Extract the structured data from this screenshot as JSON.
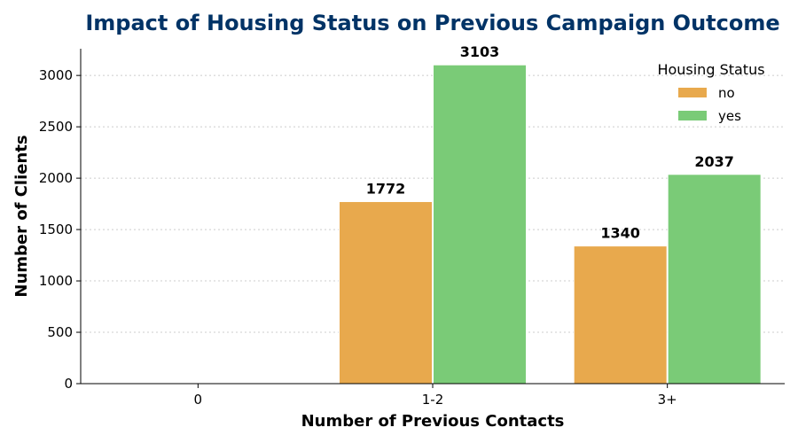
{
  "chart_data": {
    "type": "bar",
    "title": "Impact of Housing Status on Previous Campaign Outcome",
    "xlabel": "Number of Previous Contacts",
    "ylabel": "Number of Clients",
    "categories": [
      "0",
      "1-2",
      "3+"
    ],
    "series": [
      {
        "name": "no",
        "values": [
          0,
          1772,
          1340
        ],
        "color": "#E8A94D"
      },
      {
        "name": "yes",
        "values": [
          0,
          3103,
          2037
        ],
        "color": "#7ACB77"
      }
    ],
    "ylim": [
      0,
      3260
    ],
    "yticks": [
      0,
      500,
      1000,
      1500,
      2000,
      2500,
      3000
    ],
    "grid": true,
    "legend": {
      "title": "Housing Status",
      "placement": "top-right"
    },
    "data_labels_shown_for": [
      "1-2",
      "3+"
    ]
  }
}
